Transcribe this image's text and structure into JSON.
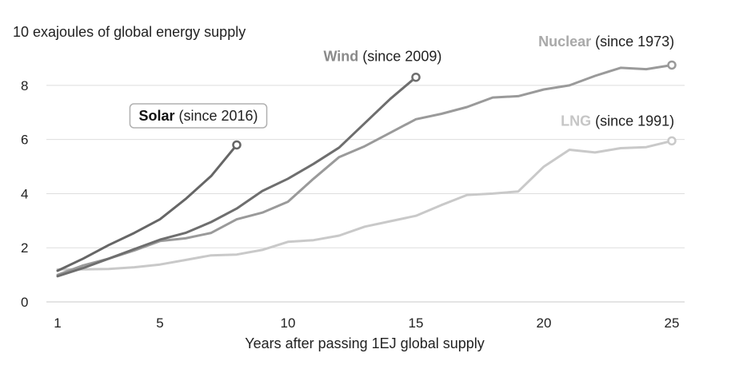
{
  "chart_data": {
    "type": "line",
    "ylabel": "10 exajoules of global energy supply",
    "xlabel": "Years after passing 1EJ global supply",
    "xlim": [
      1,
      25
    ],
    "ylim": [
      0,
      9
    ],
    "xticks": [
      1,
      5,
      10,
      15,
      20,
      25
    ],
    "yticks": [
      0,
      2,
      4,
      6,
      8
    ],
    "grid": "horizontal",
    "series": [
      {
        "name": "Solar",
        "label_suffix": " (since 2016)",
        "color": "#666666",
        "label_color": "#111111",
        "label_boxed": true,
        "label_anchor": "middle",
        "label_at": [
          6.5,
          6.7
        ],
        "x": [
          1,
          2,
          3,
          4,
          5,
          6,
          7,
          8
        ],
        "y": [
          1.15,
          1.6,
          2.1,
          2.55,
          3.05,
          3.8,
          4.65,
          5.8
        ]
      },
      {
        "name": "Wind",
        "label_suffix": " (since 2009)",
        "color": "#6e6e6e",
        "label_color": "#8a8a8a",
        "label_boxed": false,
        "label_anchor": "middle",
        "label_at": [
          13.7,
          8.9
        ],
        "x": [
          1,
          2,
          3,
          4,
          5,
          6,
          7,
          8,
          9,
          10,
          11,
          12,
          13,
          14,
          15
        ],
        "y": [
          0.95,
          1.25,
          1.6,
          1.95,
          2.3,
          2.55,
          2.95,
          3.45,
          4.1,
          4.55,
          5.1,
          5.7,
          6.6,
          7.5,
          8.3
        ]
      },
      {
        "name": "Nuclear",
        "label_suffix": " (since 1973)",
        "color": "#9a9a9a",
        "label_color": "#a9a9a9",
        "label_boxed": false,
        "label_anchor": "end",
        "label_at": [
          25.1,
          9.45
        ],
        "x": [
          1,
          2,
          3,
          4,
          5,
          6,
          7,
          8,
          9,
          10,
          11,
          12,
          13,
          14,
          15,
          16,
          17,
          18,
          19,
          20,
          21,
          22,
          23,
          24,
          25
        ],
        "y": [
          1.0,
          1.35,
          1.6,
          1.9,
          2.25,
          2.35,
          2.55,
          3.05,
          3.3,
          3.7,
          4.55,
          5.35,
          5.75,
          6.25,
          6.75,
          6.95,
          7.2,
          7.55,
          7.6,
          7.85,
          8.0,
          8.35,
          8.65,
          8.6,
          8.75
        ]
      },
      {
        "name": "LNG",
        "label_suffix": " (since 1991)",
        "color": "#c9c9c9",
        "label_color": "#c6c6c6",
        "label_boxed": false,
        "label_anchor": "end",
        "label_at": [
          25.1,
          6.5
        ],
        "x": [
          1,
          2,
          3,
          4,
          5,
          6,
          7,
          8,
          9,
          10,
          11,
          12,
          13,
          14,
          15,
          16,
          17,
          18,
          19,
          20,
          21,
          22,
          23,
          24,
          25
        ],
        "y": [
          1.2,
          1.2,
          1.22,
          1.28,
          1.38,
          1.55,
          1.72,
          1.75,
          1.92,
          2.22,
          2.28,
          2.45,
          2.78,
          2.98,
          3.18,
          3.58,
          3.95,
          4.0,
          4.08,
          5.0,
          5.62,
          5.52,
          5.68,
          5.72,
          5.95
        ]
      }
    ]
  }
}
